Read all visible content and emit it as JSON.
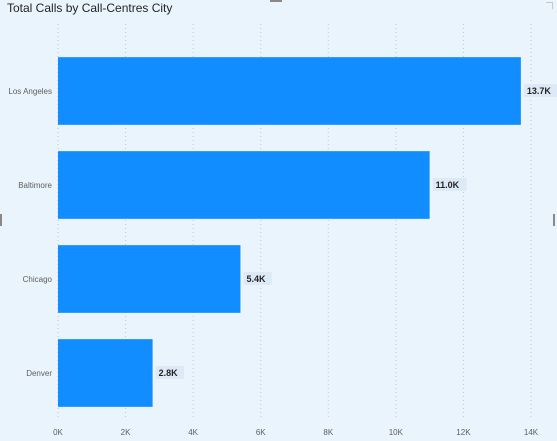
{
  "chart_data": {
    "type": "bar",
    "orientation": "horizontal",
    "title": "Total Calls by Call-Centres City",
    "categories": [
      "Los Angeles",
      "Baltimore",
      "Chicago",
      "Denver"
    ],
    "values": [
      13700,
      11000,
      5400,
      2800
    ],
    "data_labels": [
      "13.7K",
      "11.0K",
      "5.4K",
      "2.8K"
    ],
    "x_ticks": [
      {
        "value": 0,
        "label": "0K"
      },
      {
        "value": 2000,
        "label": "2K"
      },
      {
        "value": 4000,
        "label": "4K"
      },
      {
        "value": 6000,
        "label": "6K"
      },
      {
        "value": 8000,
        "label": "8K"
      },
      {
        "value": 10000,
        "label": "10K"
      },
      {
        "value": 12000,
        "label": "12K"
      },
      {
        "value": 14000,
        "label": "14K"
      }
    ],
    "xlim": [
      0,
      14000
    ],
    "xlabel": "",
    "ylabel": "",
    "grid": true,
    "bar_color": "#118dff",
    "background_color": "#eaf4fd"
  }
}
